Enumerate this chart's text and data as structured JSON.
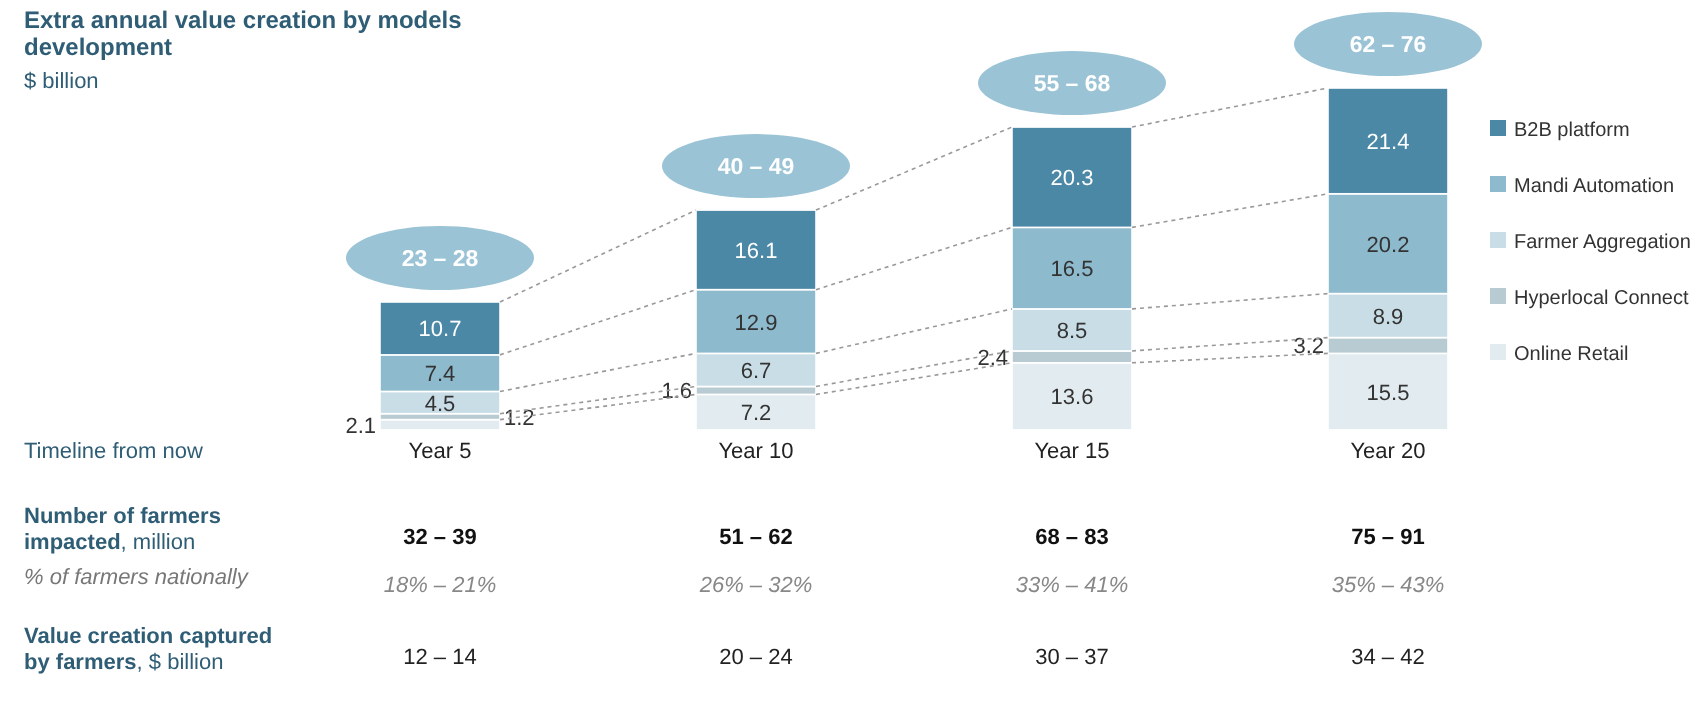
{
  "chart_data": {
    "type": "bar",
    "title": "Extra annual value creation by models development",
    "subtitle": "$ billion",
    "categories": [
      "Year 5",
      "Year 10",
      "Year 15",
      "Year 20"
    ],
    "stacked": true,
    "data_labels": true,
    "legend": "right",
    "series": [
      {
        "name": "Online Retail",
        "color": "#e2ecf0",
        "values": [
          2.1,
          7.2,
          13.6,
          15.5
        ]
      },
      {
        "name": "Hyperlocal Connect",
        "color": "#b9cbd2",
        "values": [
          1.2,
          1.6,
          2.4,
          3.2
        ]
      },
      {
        "name": "Farmer Aggregation",
        "color": "#c9dde6",
        "values": [
          4.5,
          6.7,
          8.5,
          8.9
        ]
      },
      {
        "name": "Mandi Automation",
        "color": "#8dbacd",
        "values": [
          7.4,
          12.9,
          16.5,
          20.2
        ]
      },
      {
        "name": "B2B platform",
        "color": "#4b88a6",
        "values": [
          10.7,
          16.1,
          20.3,
          21.4
        ]
      }
    ],
    "totals": [
      "23 – 28",
      "40 – 49",
      "55 – 68",
      "62 – 76"
    ],
    "annotations": [
      "Timeline from now",
      "Number of farmers impacted, million",
      "32 – 39",
      "51 – 62",
      "68 – 83",
      "75 – 91",
      "% of farmers nationally",
      "18% – 21%",
      "26% – 32%",
      "33% – 41%",
      "35% – 43%",
      "Value creation captured by farmers, $ billion",
      "12 – 14",
      "20 – 24",
      "30 – 37",
      "34 – 42"
    ]
  }
}
